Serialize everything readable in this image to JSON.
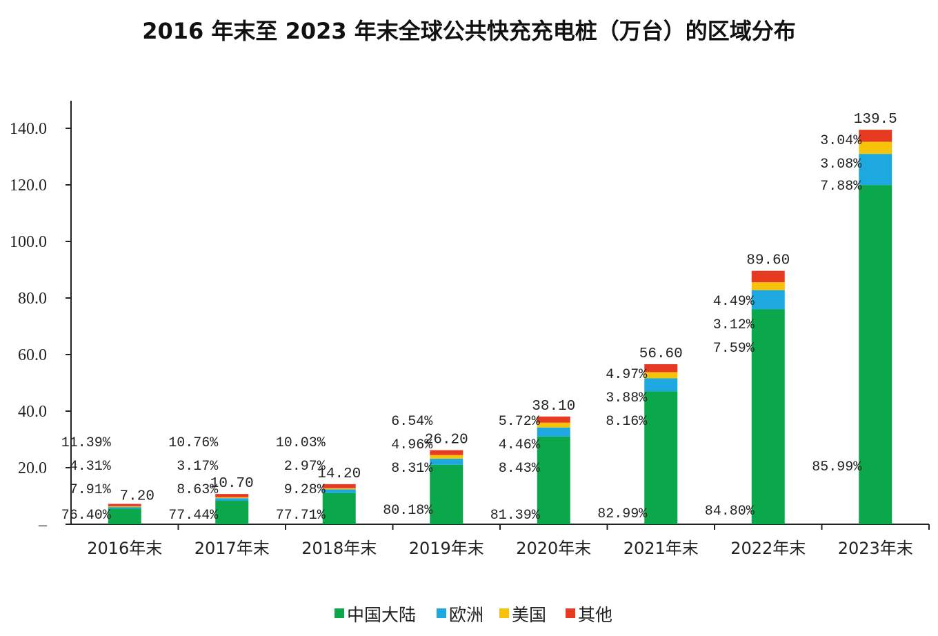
{
  "chart_data": {
    "type": "bar",
    "stacked": true,
    "title": "2016 年末至 2023 年末全球公共快充充电桩（万台）的区域分布",
    "categories": [
      "2016年末",
      "2017年末",
      "2018年末",
      "2019年末",
      "2020年末",
      "2021年末",
      "2022年末",
      "2023年末"
    ],
    "totals": [
      "7.20",
      "10.70",
      "14.20",
      "26.20",
      "38.10",
      "56.60",
      "89.60",
      "139.5"
    ],
    "total_values": [
      7.2,
      10.7,
      14.2,
      26.2,
      38.1,
      56.6,
      89.6,
      139.5
    ],
    "series": [
      {
        "name": "中国大陆",
        "color": "#0aa84a",
        "values": [
          5.5,
          8.29,
          11.03,
          21.01,
          31.01,
          46.97,
          75.98,
          119.96
        ],
        "labels": [
          "76.40%",
          "77.44%",
          "77.71%",
          "80.18%",
          "81.39%",
          "82.99%",
          "84.80%",
          "85.99%"
        ]
      },
      {
        "name": "欧洲",
        "color": "#1ea8e0",
        "values": [
          0.57,
          0.92,
          1.32,
          2.18,
          3.21,
          4.62,
          6.8,
          10.99
        ],
        "labels": [
          "7.91%",
          "8.63%",
          "9.28%",
          "8.31%",
          "8.43%",
          "8.16%",
          "7.59%",
          "7.88%"
        ]
      },
      {
        "name": "美国",
        "color": "#f7c20a",
        "values": [
          0.31,
          0.34,
          0.42,
          1.3,
          1.7,
          2.2,
          2.8,
          4.3
        ],
        "labels": [
          "4.31%",
          "3.17%",
          "2.97%",
          "4.96%",
          "4.46%",
          "3.88%",
          "3.12%",
          "3.08%"
        ]
      },
      {
        "name": "其他",
        "color": "#e63a22",
        "values": [
          0.82,
          1.15,
          1.42,
          1.71,
          2.18,
          2.81,
          4.02,
          4.24
        ],
        "labels": [
          "11.39%",
          "10.76%",
          "10.03%",
          "6.54%",
          "5.72%",
          "4.97%",
          "4.49%",
          "3.04%"
        ]
      }
    ],
    "y_ticks": [
      "140.0",
      "120.0",
      "100.0",
      "80.0",
      "60.0",
      "40.0",
      "20.0",
      "–"
    ],
    "y_tick_values": [
      140,
      120,
      100,
      80,
      60,
      40,
      20,
      0
    ],
    "ylim": [
      0,
      150
    ],
    "grid": false,
    "legend": "bottom"
  }
}
